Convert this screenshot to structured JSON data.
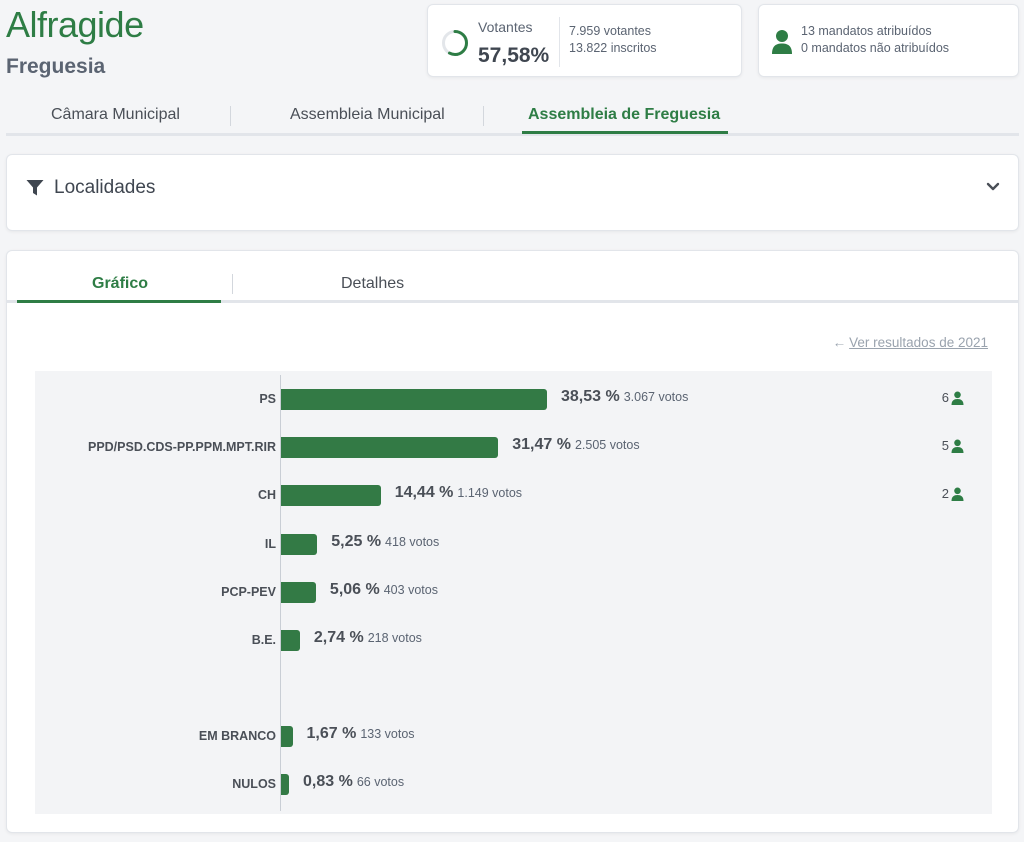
{
  "header": {
    "title": "Alfragide",
    "subtitle": "Freguesia"
  },
  "turnout": {
    "label": "Votantes",
    "percent": "57,58%",
    "percent_value": 57.58,
    "voters": "7.959 votantes",
    "registered": "13.822 inscritos"
  },
  "mandates": {
    "assigned": "13 mandatos atribuídos",
    "unassigned": "0 mandatos não atribuídos"
  },
  "tabs": [
    {
      "label": "Câmara Municipal",
      "active": false
    },
    {
      "label": "Assembleia Municipal",
      "active": false
    },
    {
      "label": "Assembleia de Freguesia",
      "active": true
    }
  ],
  "filter": {
    "label": "Localidades"
  },
  "inner_tabs": [
    {
      "label": "Gráfico",
      "active": true
    },
    {
      "label": "Detalhes",
      "active": false
    }
  ],
  "previous_results_link": "Ver resultados de 2021",
  "colors": {
    "accent": "#2e7d45",
    "bar": "#337a45"
  },
  "chart_data": {
    "type": "bar",
    "orientation": "horizontal",
    "categories": [
      "PS",
      "PPD/PSD.CDS-PP.PPM.MPT.RIR",
      "CH",
      "IL",
      "PCP-PEV",
      "B.E.",
      "EM BRANCO",
      "NULOS"
    ],
    "values": [
      38.53,
      31.47,
      14.44,
      5.25,
      5.06,
      2.74,
      1.67,
      0.83
    ],
    "labels": [
      "38,53 %",
      "31,47 %",
      "14,44 %",
      "5,25 %",
      "5,06 %",
      "2,74 %",
      "1,67 %",
      "0,83 %"
    ],
    "votes": [
      "3.067 votos",
      "2.505 votos",
      "1.149 votos",
      "418 votos",
      "403 votos",
      "218 votos",
      "133 votos",
      "66 votos"
    ],
    "seats": [
      "6",
      "5",
      "2",
      "",
      "",
      "",
      "",
      ""
    ]
  }
}
